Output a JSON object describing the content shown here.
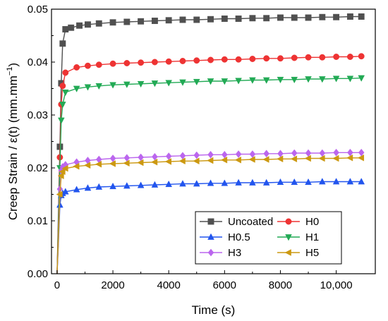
{
  "chart_data": {
    "type": "line",
    "xlabel": "Time (s)",
    "ylabel_main": "Creep Strain / ε(t) (mm.mm",
    "ylabel_sup": "−1",
    "ylabel_close": ")",
    "xlim": [
      -200,
      11400
    ],
    "ylim": [
      0,
      0.05
    ],
    "x_ticks": [
      0,
      2000,
      4000,
      6000,
      8000,
      10000
    ],
    "x_tick_labels": [
      "0",
      "2000",
      "4000",
      "6000",
      "8000",
      "10,000"
    ],
    "y_ticks": [
      0,
      0.01,
      0.02,
      0.03,
      0.04,
      0.05
    ],
    "y_tick_labels": [
      "0.00",
      "0.01",
      "0.02",
      "0.03",
      "0.04",
      "0.05"
    ],
    "grid": false,
    "legend": {
      "placement": "bottom-right",
      "columns": 2
    },
    "series": [
      {
        "name": "Uncoated",
        "color": "#505050",
        "marker": "square",
        "x": [
          0,
          50,
          100,
          150,
          200,
          300,
          500,
          800,
          1100,
          1500,
          2000,
          2500,
          3000,
          3500,
          4000,
          4500,
          5000,
          5500,
          6000,
          6500,
          7000,
          7500,
          8000,
          8500,
          9000,
          9500,
          10000,
          10500,
          10900
        ],
        "y": [
          0,
          0.012,
          0.024,
          0.036,
          0.0435,
          0.0462,
          0.0465,
          0.0469,
          0.0471,
          0.0473,
          0.0475,
          0.0476,
          0.0477,
          0.0478,
          0.0479,
          0.048,
          0.048,
          0.0481,
          0.0482,
          0.0482,
          0.0483,
          0.0483,
          0.0484,
          0.0484,
          0.0484,
          0.0485,
          0.0485,
          0.0486,
          0.0486
        ]
      },
      {
        "name": "H0",
        "color": "#ee3333",
        "marker": "circle",
        "x": [
          0,
          50,
          100,
          150,
          200,
          300,
          700,
          1100,
          1500,
          2000,
          2500,
          3000,
          3500,
          4000,
          4500,
          5000,
          5500,
          6000,
          6500,
          7000,
          7500,
          8000,
          8500,
          9000,
          9500,
          10000,
          10500,
          10900
        ],
        "y": [
          0,
          0.01,
          0.022,
          0.032,
          0.0355,
          0.038,
          0.039,
          0.0393,
          0.0395,
          0.0397,
          0.0398,
          0.0399,
          0.04,
          0.0401,
          0.0402,
          0.0403,
          0.0404,
          0.0405,
          0.0405,
          0.0406,
          0.0407,
          0.0407,
          0.0408,
          0.0409,
          0.0409,
          0.041,
          0.041,
          0.0411
        ]
      },
      {
        "name": "H0.5",
        "color": "#2255ee",
        "marker": "triangle-up",
        "x": [
          0,
          50,
          100,
          150,
          200,
          300,
          700,
          1100,
          1500,
          2000,
          2500,
          3000,
          3500,
          4000,
          4500,
          5000,
          5500,
          6000,
          6500,
          7000,
          7500,
          8000,
          8500,
          9000,
          9500,
          10000,
          10500,
          10900
        ],
        "y": [
          0,
          0.006,
          0.013,
          0.0148,
          0.0152,
          0.0155,
          0.0159,
          0.0162,
          0.0164,
          0.0165,
          0.0166,
          0.0167,
          0.0168,
          0.0169,
          0.017,
          0.017,
          0.0171,
          0.0171,
          0.0172,
          0.0172,
          0.0172,
          0.0173,
          0.0173,
          0.0173,
          0.0174,
          0.0174,
          0.0174,
          0.0174
        ]
      },
      {
        "name": "H1",
        "color": "#22aa55",
        "marker": "triangle-down",
        "x": [
          0,
          50,
          100,
          150,
          200,
          300,
          700,
          1100,
          1500,
          2000,
          2500,
          3000,
          3500,
          4000,
          4500,
          5000,
          5500,
          6000,
          6500,
          7000,
          7500,
          8000,
          8500,
          9000,
          9500,
          10000,
          10500,
          10900
        ],
        "y": [
          0,
          0.009,
          0.02,
          0.029,
          0.032,
          0.0343,
          0.035,
          0.0353,
          0.0355,
          0.0357,
          0.0358,
          0.0359,
          0.036,
          0.0361,
          0.0362,
          0.0363,
          0.0364,
          0.0364,
          0.0365,
          0.0366,
          0.0366,
          0.0367,
          0.0367,
          0.0368,
          0.0368,
          0.0369,
          0.0369,
          0.037
        ]
      },
      {
        "name": "H3",
        "color": "#bb66ee",
        "marker": "diamond",
        "x": [
          0,
          50,
          100,
          150,
          200,
          300,
          700,
          1100,
          1500,
          2000,
          2500,
          3000,
          3500,
          4000,
          4500,
          5000,
          5500,
          6000,
          6500,
          7000,
          7500,
          8000,
          8500,
          9000,
          9500,
          10000,
          10500,
          10900
        ],
        "y": [
          0,
          0.007,
          0.016,
          0.0195,
          0.0202,
          0.0206,
          0.0211,
          0.0214,
          0.0216,
          0.0218,
          0.0219,
          0.022,
          0.0221,
          0.0222,
          0.0223,
          0.0224,
          0.0225,
          0.0225,
          0.0226,
          0.0226,
          0.0227,
          0.0227,
          0.0228,
          0.0228,
          0.0228,
          0.0229,
          0.0229,
          0.0229
        ]
      },
      {
        "name": "H5",
        "color": "#cc9911",
        "marker": "triangle-left",
        "x": [
          0,
          50,
          100,
          150,
          200,
          300,
          700,
          1100,
          1500,
          2000,
          2500,
          3000,
          3500,
          4000,
          4500,
          5000,
          5500,
          6000,
          6500,
          7000,
          7500,
          8000,
          8500,
          9000,
          9500,
          10000,
          10500,
          10900
        ],
        "y": [
          0,
          0.007,
          0.015,
          0.0185,
          0.0193,
          0.0199,
          0.0203,
          0.0205,
          0.0207,
          0.0208,
          0.0209,
          0.021,
          0.0211,
          0.0212,
          0.0213,
          0.0213,
          0.0214,
          0.0215,
          0.0215,
          0.0216,
          0.0216,
          0.0217,
          0.0217,
          0.0218,
          0.0218,
          0.0218,
          0.0219,
          0.0219
        ]
      }
    ]
  }
}
